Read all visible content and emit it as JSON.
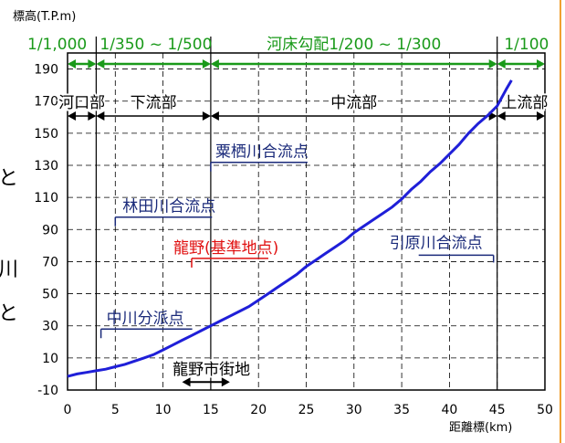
{
  "chart_data": {
    "type": "line",
    "ylabel": "標高(T.P.m)",
    "xlabel": "距離標(km)",
    "xlim": [
      0,
      50
    ],
    "ylim": [
      -10,
      200
    ],
    "x_ticks": [
      0,
      5,
      10,
      15,
      20,
      25,
      30,
      35,
      40,
      45,
      50
    ],
    "y_ticks": [
      -10,
      10,
      30,
      50,
      70,
      90,
      110,
      130,
      150,
      170,
      190
    ],
    "grid": true,
    "series": [
      {
        "color": "#1f1fd8",
        "x": [
          0,
          1,
          2,
          3,
          4,
          5,
          6,
          7,
          8,
          9,
          10,
          11,
          12,
          13,
          14,
          15,
          16,
          17,
          18,
          19,
          20,
          21,
          22,
          23,
          24,
          25,
          26,
          27,
          28,
          29,
          30,
          31,
          32,
          33,
          34,
          35,
          36,
          37,
          38,
          39,
          40,
          41,
          42,
          43,
          44,
          45,
          46,
          46.5
        ],
        "y": [
          -1.5,
          0,
          1,
          2,
          3,
          4.5,
          6,
          8,
          10,
          12,
          15,
          18,
          21,
          24,
          27,
          30,
          33,
          36,
          39,
          42,
          46,
          50,
          54,
          58,
          62,
          67,
          71,
          75,
          79,
          83,
          88,
          92,
          96,
          100,
          104,
          109,
          115,
          120,
          126,
          131,
          137,
          143,
          150,
          156,
          161,
          167,
          178,
          183
        ]
      }
    ],
    "gradient_labels": [
      "1/1,000",
      "1/350 ~ 1/500",
      "河床勾配1/200 ~ 1/300",
      "1/100"
    ],
    "gradient_bounds_km": [
      0,
      3,
      15,
      45,
      50
    ],
    "section_labels": [
      "河口部",
      "下流部",
      "中流部",
      "上流部"
    ],
    "section_bounds_km": [
      0,
      3,
      15,
      45,
      50
    ],
    "annotations": [
      {
        "text": "粟栖川合流点",
        "x": 15,
        "y": 133,
        "color": "#1a2a7a"
      },
      {
        "text": "林田川合流点",
        "x": 5,
        "y": 100,
        "color": "#1a2a7a"
      },
      {
        "text": "龍野(基準地点)",
        "x": 13,
        "y": 72,
        "color": "#e01010"
      },
      {
        "text": "引原川合流点",
        "x": 45,
        "y": 74,
        "color": "#1a2a7a"
      },
      {
        "text": "中川分派点",
        "x": 3.5,
        "y": 28,
        "color": "#1a2a7a"
      },
      {
        "text": "龍野市街地",
        "x_range": [
          12,
          17
        ],
        "y": -5,
        "color": "#000000"
      }
    ],
    "side_text": [
      "と",
      "川",
      "と"
    ]
  }
}
